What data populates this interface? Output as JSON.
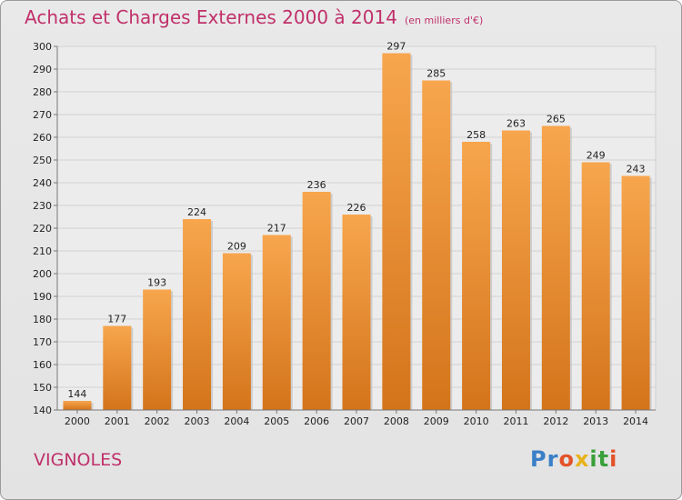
{
  "header": {
    "title": "Achats et Charges Externes 2000 à 2014",
    "unit": "(en milliers d'€)"
  },
  "footer": {
    "commune": "VIGNOLES",
    "logo": [
      "P",
      "r",
      "o",
      "x",
      "i",
      "t",
      "i"
    ]
  },
  "colors": {
    "title": "#c0306a",
    "bar_light": "#f7a64e",
    "bar_dark": "#d4741a",
    "logo": [
      "#3a7fc8",
      "#3a7fc8",
      "#e4522a",
      "#e8b21a",
      "#3aa03a",
      "#3aa03a",
      "#e4522a"
    ]
  },
  "chart_data": {
    "type": "bar",
    "categories": [
      "2000",
      "2001",
      "2002",
      "2003",
      "2004",
      "2005",
      "2006",
      "2007",
      "2008",
      "2009",
      "2010",
      "2011",
      "2012",
      "2013",
      "2014"
    ],
    "values": [
      144,
      177,
      193,
      224,
      209,
      217,
      236,
      226,
      297,
      285,
      258,
      263,
      265,
      249,
      243
    ],
    "ylim": [
      140,
      300
    ],
    "ytick_step": 10,
    "grid": true,
    "data_labels": true
  }
}
